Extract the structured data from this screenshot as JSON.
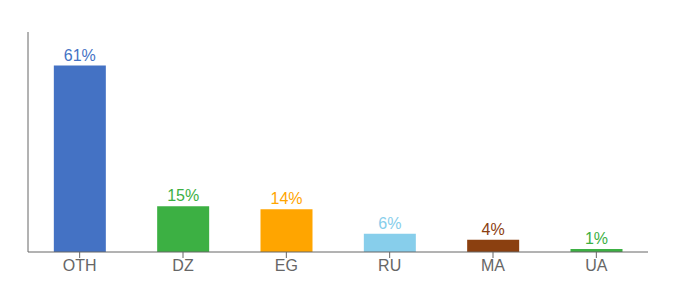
{
  "chart_data": {
    "type": "bar",
    "categories": [
      "OTH",
      "DZ",
      "EG",
      "RU",
      "MA",
      "UA"
    ],
    "values": [
      61,
      15,
      14,
      6,
      4,
      1
    ],
    "value_labels": [
      "61%",
      "15%",
      "14%",
      "6%",
      "4%",
      "1%"
    ],
    "data_labels": true,
    "colors": [
      "#4472C4",
      "#3CB043",
      "#FFA500",
      "#87CEEB",
      "#8B4010",
      "#3CB043"
    ],
    "ylim": [
      0,
      72
    ],
    "tick_labels": "x",
    "grid": false
  }
}
